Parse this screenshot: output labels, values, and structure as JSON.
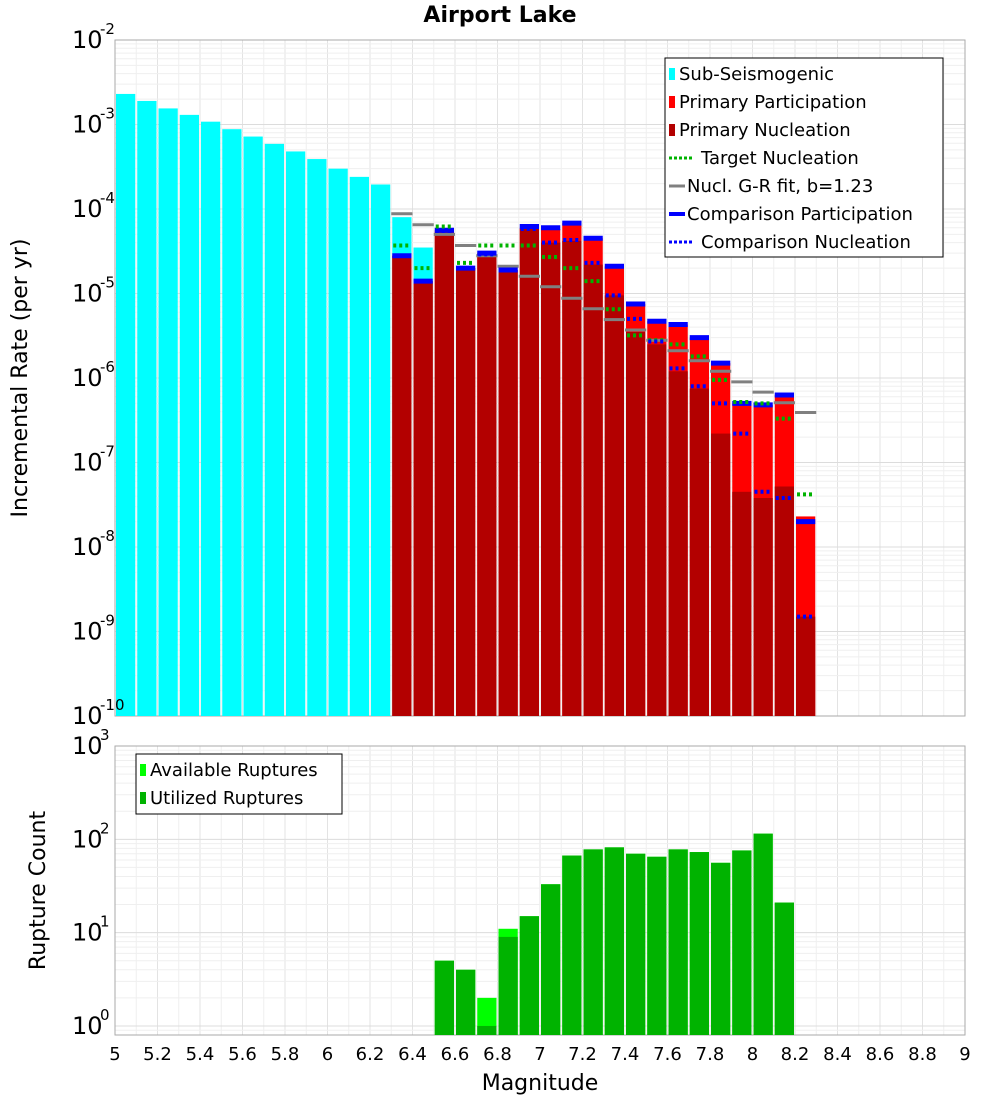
{
  "chart_data": [
    {
      "type": "bar",
      "title": "Airport Lake",
      "xlabel": "",
      "ylabel": "Incremental Rate (per yr)",
      "yscale": "log",
      "xlim": [
        5,
        9
      ],
      "ylim": [
        1e-10,
        0.01
      ],
      "bin_width": 0.1,
      "yticks": [
        {
          "base": "10",
          "exp": "-10"
        },
        {
          "base": "10",
          "exp": "-9"
        },
        {
          "base": "10",
          "exp": "-8"
        },
        {
          "base": "10",
          "exp": "-7"
        },
        {
          "base": "10",
          "exp": "-6"
        },
        {
          "base": "10",
          "exp": "-5"
        },
        {
          "base": "10",
          "exp": "-4"
        },
        {
          "base": "10",
          "exp": "-3"
        },
        {
          "base": "10",
          "exp": "-2"
        }
      ],
      "legend": {
        "position": "top-right",
        "entries": [
          {
            "label": "Sub-Seismogenic",
            "color": "#00ffff",
            "style": "box"
          },
          {
            "label": "Primary Participation",
            "color": "#ff0000",
            "style": "box"
          },
          {
            "label": "Primary Nucleation",
            "color": "#b30000",
            "style": "box"
          },
          {
            "label": "Target Nucleation",
            "color": "#00b300",
            "style": "dotted"
          },
          {
            "label": "Nucl. G-R fit, b=1.23",
            "color": "#808080",
            "style": "solid"
          },
          {
            "label": "Comparison Participation",
            "color": "#0000ff",
            "style": "thick"
          },
          {
            "label": "Comparison Nucleation",
            "color": "#0000ff",
            "style": "dotted"
          }
        ]
      },
      "series": [
        {
          "name": "Sub-Seismogenic",
          "color": "#00ffff",
          "x": [
            5.05,
            5.15,
            5.25,
            5.35,
            5.45,
            5.55,
            5.65,
            5.75,
            5.85,
            5.95,
            6.05,
            6.15,
            6.25,
            6.35,
            6.45
          ],
          "values": [
            0.0023,
            0.0019,
            0.00155,
            0.0013,
            0.00108,
            0.00088,
            0.00072,
            0.00059,
            0.00048,
            0.00039,
            0.0003,
            0.00024,
            0.000195,
            8e-05,
            3.5e-05
          ]
        },
        {
          "name": "Primary Participation",
          "color": "#ff0000",
          "x": [
            6.35,
            6.45,
            6.55,
            6.65,
            6.75,
            6.85,
            6.95,
            7.05,
            7.15,
            7.25,
            7.35,
            7.45,
            7.55,
            7.65,
            7.75,
            7.85,
            7.95,
            8.05,
            8.15,
            8.25
          ],
          "values": [
            2.8e-05,
            1.4e-05,
            5.6e-05,
            2e-05,
            3e-05,
            1.9e-05,
            6e-05,
            5.8e-05,
            6.8e-05,
            4.5e-05,
            2.1e-05,
            7.5e-06,
            4.7e-06,
            4.3e-06,
            3e-06,
            1.5e-06,
            5e-07,
            4.8e-07,
            6.3e-07,
            2.3e-08
          ]
        },
        {
          "name": "Primary Nucleation",
          "color": "#b30000",
          "x": [
            6.35,
            6.45,
            6.55,
            6.65,
            6.75,
            6.85,
            6.95,
            7.05,
            7.15,
            7.25,
            7.35,
            7.45,
            7.55,
            7.65,
            7.75,
            7.85,
            7.95,
            8.05,
            8.15,
            8.25
          ],
          "values": [
            2.8e-05,
            1.4e-05,
            5.3e-05,
            2e-05,
            2.8e-05,
            1.9e-05,
            5.8e-05,
            4e-05,
            4.2e-05,
            2.2e-05,
            9.5e-06,
            3.5e-06,
            2.5e-06,
            1.2e-06,
            7.5e-07,
            2.2e-07,
            4.5e-08,
            3.8e-08,
            5.2e-08,
            1.5e-09
          ]
        },
        {
          "name": "Target Nucleation",
          "color": "#00b300",
          "x": [
            6.35,
            6.45,
            6.55,
            6.65,
            6.75,
            6.85,
            6.95,
            7.05,
            7.15,
            7.25,
            7.35,
            7.45,
            7.55,
            7.65,
            7.75,
            7.85,
            7.95,
            8.05,
            8.15,
            8.25
          ],
          "values": [
            3.7e-05,
            2e-05,
            6.2e-05,
            2.3e-05,
            3.7e-05,
            3.7e-05,
            3.7e-05,
            2.7e-05,
            2e-05,
            1.4e-05,
            6.5e-06,
            3.2e-06,
            2.8e-06,
            2.5e-06,
            1.8e-06,
            9.5e-07,
            5.2e-07,
            5e-07,
            3.3e-07,
            4.2e-08
          ]
        },
        {
          "name": "Nucl. G-R fit, b=1.23",
          "color": "#808080",
          "x": [
            6.35,
            6.45,
            6.55,
            6.65,
            6.75,
            6.85,
            6.95,
            7.05,
            7.15,
            7.25,
            7.35,
            7.45,
            7.55,
            7.65,
            7.75,
            7.85,
            7.95,
            8.05,
            8.15,
            8.25
          ],
          "values": [
            8.8e-05,
            6.5e-05,
            5e-05,
            3.7e-05,
            2.8e-05,
            2.1e-05,
            1.6e-05,
            1.2e-05,
            8.8e-06,
            6.6e-06,
            4.9e-06,
            3.7e-06,
            2.8e-06,
            2.1e-06,
            1.6e-06,
            1.2e-06,
            9e-07,
            6.8e-07,
            5.1e-07,
            3.9e-07
          ]
        },
        {
          "name": "Comparison Participation",
          "color": "#0000ff",
          "x": [
            6.35,
            6.45,
            6.55,
            6.65,
            6.75,
            6.85,
            6.95,
            7.05,
            7.15,
            7.25,
            7.35,
            7.45,
            7.55,
            7.65,
            7.75,
            7.85,
            7.95,
            8.05,
            8.15,
            8.25
          ],
          "values": [
            2.8e-05,
            1.4e-05,
            5.6e-05,
            2e-05,
            3e-05,
            1.9e-05,
            6.2e-05,
            6e-05,
            6.8e-05,
            4.5e-05,
            2.1e-05,
            7.5e-06,
            4.7e-06,
            4.3e-06,
            3e-06,
            1.5e-06,
            5e-07,
            4.8e-07,
            6.3e-07,
            2e-08
          ]
        },
        {
          "name": "Comparison Nucleation",
          "color": "#0000ff",
          "x": [
            6.35,
            6.45,
            6.55,
            6.65,
            6.75,
            6.85,
            6.95,
            7.05,
            7.15,
            7.25,
            7.35,
            7.45,
            7.55,
            7.65,
            7.75,
            7.85,
            7.95,
            8.05,
            8.15,
            8.25
          ],
          "values": [
            2.8e-05,
            1.4e-05,
            5.5e-05,
            2e-05,
            2.9e-05,
            1.9e-05,
            5.8e-05,
            4e-05,
            4.3e-05,
            2.3e-05,
            9.5e-06,
            5e-06,
            2.7e-06,
            1.3e-06,
            8e-07,
            5e-07,
            2.2e-07,
            4.5e-08,
            3.8e-08,
            1.5e-09
          ]
        }
      ]
    },
    {
      "type": "bar",
      "title": "",
      "xlabel": "Magnitude",
      "ylabel": "Rupture Count",
      "yscale": "log",
      "xlim": [
        5,
        9
      ],
      "ylim": [
        0.8,
        1000
      ],
      "bin_width": 0.1,
      "xticks": [
        "5",
        "5.2",
        "5.4",
        "5.6",
        "5.8",
        "6",
        "6.2",
        "6.4",
        "6.6",
        "6.8",
        "7",
        "7.2",
        "7.4",
        "7.6",
        "7.8",
        "8",
        "8.2",
        "8.4",
        "8.6",
        "8.8",
        "9"
      ],
      "yticks": [
        {
          "base": "10",
          "exp": "0"
        },
        {
          "base": "10",
          "exp": "1"
        },
        {
          "base": "10",
          "exp": "2"
        },
        {
          "base": "10",
          "exp": "3"
        }
      ],
      "legend": {
        "position": "top-left",
        "entries": [
          {
            "label": "Available Ruptures",
            "color": "#00ff00",
            "style": "box"
          },
          {
            "label": "Utilized Ruptures",
            "color": "#00b300",
            "style": "box"
          }
        ]
      },
      "series": [
        {
          "name": "Available Ruptures",
          "color": "#00ff00",
          "x": [
            6.55,
            6.65,
            6.75,
            6.85,
            6.95,
            7.05,
            7.15,
            7.25,
            7.35,
            7.45,
            7.55,
            7.65,
            7.75,
            7.85,
            7.95,
            8.05,
            8.15
          ],
          "values": [
            5,
            4,
            2,
            11,
            15,
            33,
            67,
            78,
            82,
            70,
            65,
            78,
            73,
            56,
            76,
            115,
            21
          ]
        },
        {
          "name": "Utilized Ruptures",
          "color": "#00b300",
          "x": [
            6.55,
            6.65,
            6.75,
            6.85,
            6.95,
            7.05,
            7.15,
            7.25,
            7.35,
            7.45,
            7.55,
            7.65,
            7.75,
            7.85,
            7.95,
            8.05,
            8.15
          ],
          "values": [
            5,
            4,
            1,
            9,
            15,
            33,
            67,
            78,
            82,
            70,
            65,
            78,
            73,
            56,
            76,
            115,
            21
          ]
        }
      ]
    }
  ]
}
